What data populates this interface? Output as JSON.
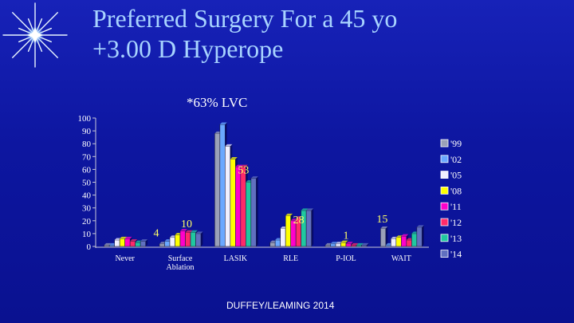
{
  "slide": {
    "title_line1": "Preferred Surgery For a 45 yo",
    "title_line2": "+3.00 D  Hyperope",
    "footer": "DUFFEY/LEAMING 2014"
  },
  "colors": {
    "background": "#1020b0",
    "title": "#a8d4ff",
    "text": "#ffffff"
  },
  "chart_data": {
    "type": "bar",
    "subtitle": "*63% LVC",
    "ylim": [
      0,
      100
    ],
    "yticks": [
      0,
      10,
      20,
      30,
      40,
      50,
      60,
      70,
      80,
      90,
      100
    ],
    "grid": false,
    "legend_position": "right",
    "categories": [
      "Never",
      "Surface\nAblation",
      "LASIK",
      "RLE",
      "P-IOL",
      "WAIT"
    ],
    "series": [
      {
        "name": "'99",
        "color": "#9aa0b8",
        "values": [
          1,
          2,
          88,
          3,
          1,
          14
        ]
      },
      {
        "name": "'02",
        "color": "#6aa8ff",
        "values": [
          1,
          4,
          95,
          5,
          2,
          1
        ]
      },
      {
        "name": "'05",
        "color": "#f0f0ff",
        "values": [
          5,
          7,
          78,
          14,
          2,
          6
        ]
      },
      {
        "name": "'08",
        "color": "#ffff00",
        "values": [
          6,
          9,
          68,
          24,
          3,
          7
        ]
      },
      {
        "name": "'11",
        "color": "#ff00cc",
        "values": [
          6,
          12,
          62,
          20,
          2,
          8
        ]
      },
      {
        "name": "'12",
        "color": "#ff2a6a",
        "values": [
          4,
          11,
          62,
          22,
          1,
          5
        ]
      },
      {
        "name": "'13",
        "color": "#20c8a0",
        "values": [
          3,
          11,
          50,
          28,
          1,
          10
        ]
      },
      {
        "name": "'14",
        "color": "#6070c0",
        "values": [
          4,
          10,
          53,
          28,
          1,
          15
        ]
      }
    ],
    "annotations": [
      {
        "text": "4",
        "category": 1,
        "value": 4
      },
      {
        "text": "10",
        "category": 1,
        "value": 10
      },
      {
        "text": "53",
        "category": 2,
        "value": 53
      },
      {
        "text": "28",
        "category": 3,
        "value": 28
      },
      {
        "text": "1",
        "category": 4,
        "value": 1
      },
      {
        "text": "15",
        "category": 5,
        "value": 15
      }
    ]
  }
}
